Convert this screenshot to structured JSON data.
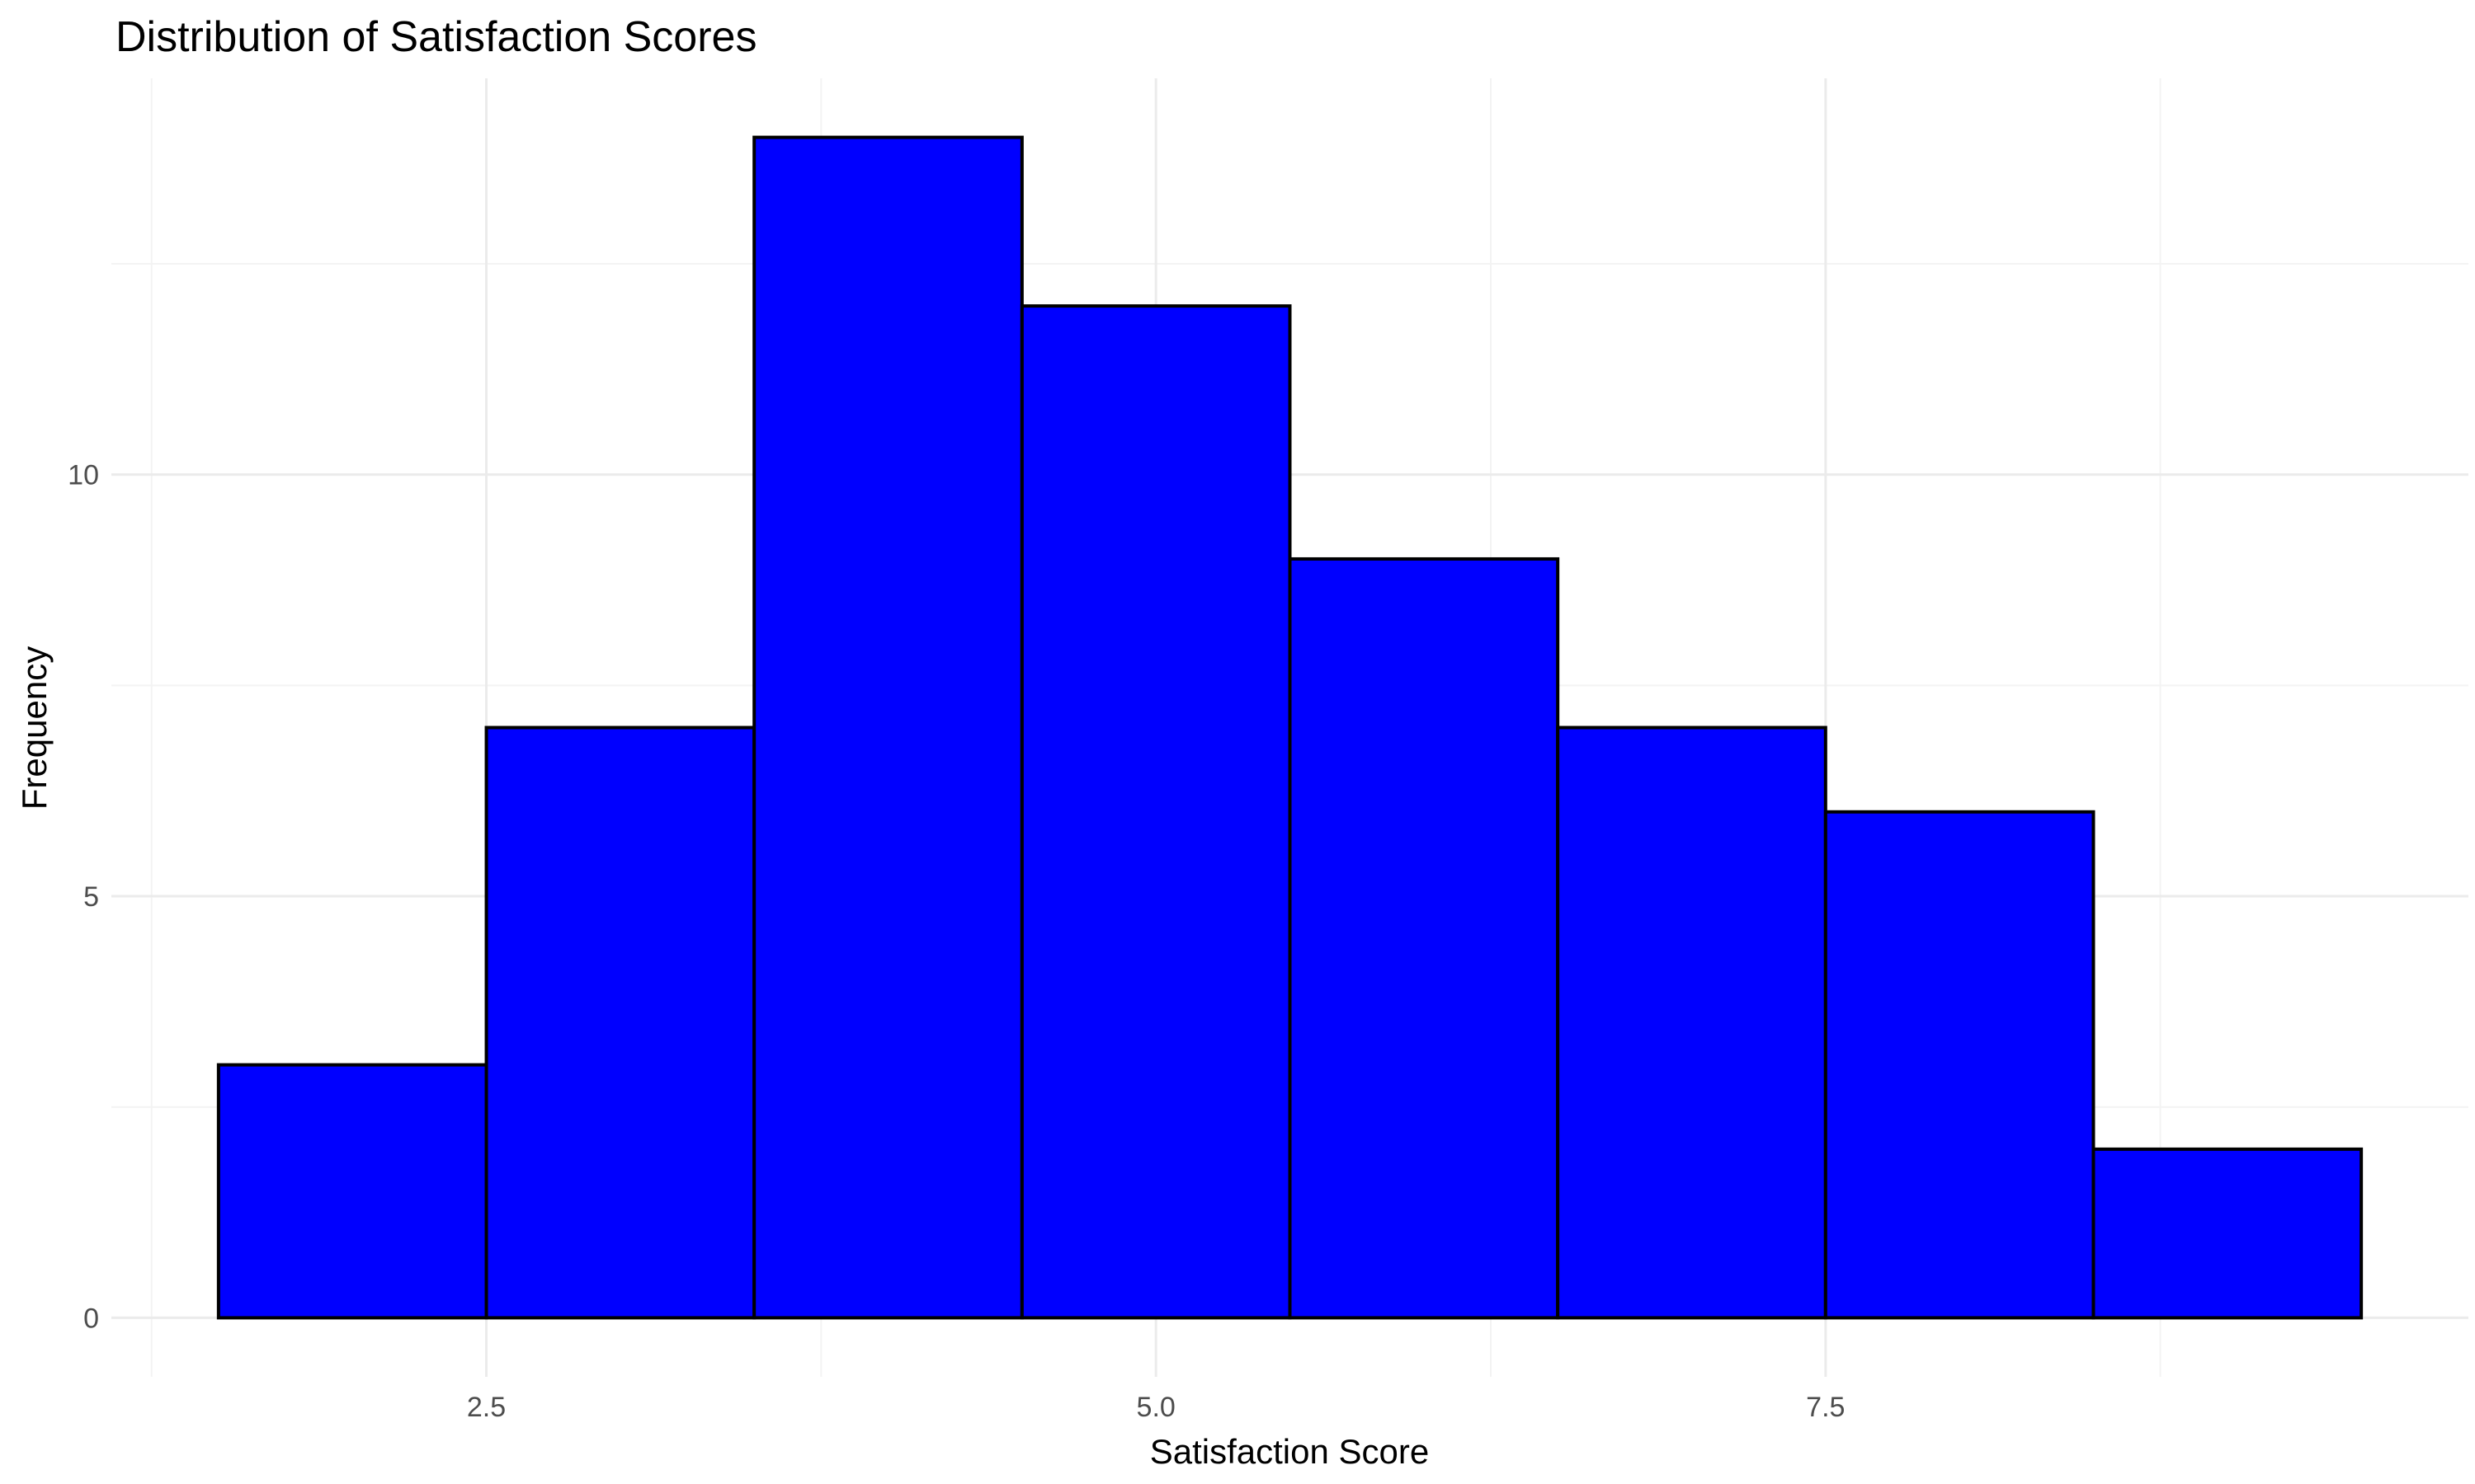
{
  "chart_data": {
    "type": "bar",
    "title": "Distribution of Satisfaction Scores",
    "xlabel": "Satisfaction Score",
    "ylabel": "Frequency",
    "bins": [
      {
        "x0": 1.5,
        "x1": 2.5,
        "count": 3
      },
      {
        "x0": 2.5,
        "x1": 3.5,
        "count": 7
      },
      {
        "x0": 3.5,
        "x1": 4.5,
        "count": 14
      },
      {
        "x0": 4.5,
        "x1": 5.5,
        "count": 12
      },
      {
        "x0": 5.5,
        "x1": 6.5,
        "count": 9
      },
      {
        "x0": 6.5,
        "x1": 7.5,
        "count": 7
      },
      {
        "x0": 7.5,
        "x1": 8.5,
        "count": 6
      },
      {
        "x0": 8.5,
        "x1": 9.5,
        "count": 2
      }
    ],
    "xlim": [
      1.1,
      9.9
    ],
    "ylim": [
      -0.7,
      14.7
    ],
    "x_ticks": [
      {
        "value": 2.5,
        "label": "2.5"
      },
      {
        "value": 5.0,
        "label": "5.0"
      },
      {
        "value": 7.5,
        "label": "7.5"
      }
    ],
    "y_ticks": [
      {
        "value": 0,
        "label": "0"
      },
      {
        "value": 5,
        "label": "5"
      },
      {
        "value": 10,
        "label": "10"
      }
    ],
    "x_minor_ticks": [
      1.25,
      3.75,
      6.25,
      8.75
    ],
    "y_minor_ticks": [
      2.5,
      7.5,
      12.5
    ],
    "grid": true,
    "bar_fill": "#0000ff",
    "bar_stroke": "#000000"
  }
}
